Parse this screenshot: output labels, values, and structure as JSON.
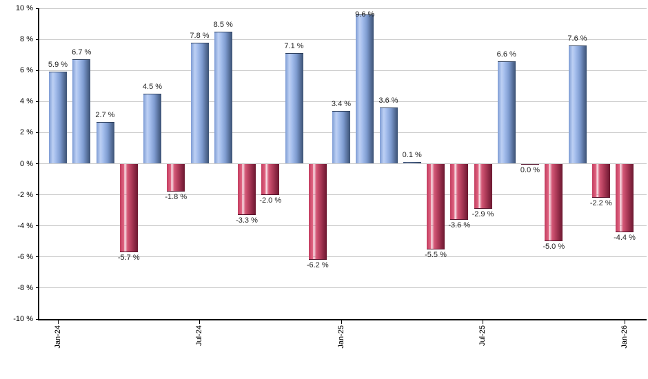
{
  "chart_data": {
    "type": "bar",
    "title": "",
    "unit": "%",
    "ylim": [
      -10,
      10
    ],
    "grid": true,
    "legend": "none",
    "y_tick_labels": [
      "10 %",
      "8 %",
      "6 %",
      "4 %",
      "2 %",
      "0 %",
      "-2 %",
      "-4 %",
      "-6 %",
      "-8 %",
      "-10 %"
    ],
    "x_tick_labels": [
      {
        "index": 0,
        "label": "Jan-24"
      },
      {
        "index": 6,
        "label": "Jul-24"
      },
      {
        "index": 12,
        "label": "Jan-25"
      },
      {
        "index": 18,
        "label": "Jul-25"
      },
      {
        "index": 24,
        "label": "Jan-26"
      }
    ],
    "values": [
      5.9,
      6.7,
      2.7,
      -5.7,
      4.5,
      -1.8,
      7.8,
      8.5,
      -3.3,
      -2.0,
      7.1,
      -6.2,
      3.4,
      9.6,
      3.6,
      0.1,
      -5.5,
      -3.6,
      -2.9,
      6.6,
      0.0,
      -5.0,
      7.6,
      -2.2,
      -4.4
    ],
    "value_labels": [
      "5.9 %",
      "6.7 %",
      "2.7 %",
      "-5.7 %",
      "4.5 %",
      "-1.8 %",
      "7.8 %",
      "8.5 %",
      "-3.3 %",
      "-2.0 %",
      "7.1 %",
      "-6.2 %",
      "3.4 %",
      "9.6 %",
      "3.6 %",
      "0.1 %",
      "-5.5 %",
      "-3.6 %",
      "-2.9 %",
      "6.6 %",
      "0.0 %",
      "-5.0 %",
      "7.6 %",
      "-2.2 %",
      "-4.4 %"
    ],
    "colors": {
      "positive_bar": "#8fb0e8",
      "positive_bar_dark_edge": "#3c5274",
      "negative_bar": "#d45776",
      "negative_bar_dark_edge": "#6b1830",
      "gridline": "#cccccc",
      "axis": "#000000",
      "label_text": "#1f1f1f",
      "background": "#ffffff"
    }
  }
}
